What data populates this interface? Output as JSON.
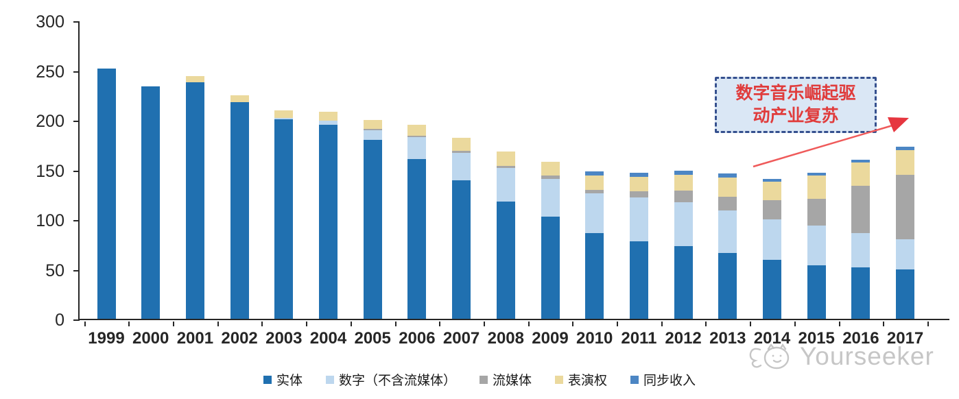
{
  "chart_data": {
    "type": "bar",
    "stacked": true,
    "title": "",
    "xlabel": "",
    "ylabel": "",
    "ylim": [
      0,
      300
    ],
    "yticks": [
      0,
      50,
      100,
      150,
      200,
      250,
      300
    ],
    "grid": false,
    "legend_position": "bottom",
    "categories": [
      "1999",
      "2000",
      "2001",
      "2002",
      "2003",
      "2004",
      "2005",
      "2006",
      "2007",
      "2008",
      "2009",
      "2010",
      "2011",
      "2012",
      "2013",
      "2014",
      "2015",
      "2016",
      "2017"
    ],
    "series": [
      {
        "key": "physical",
        "name": "实体",
        "color": "#2070b0",
        "values": [
          252,
          234,
          238,
          218,
          201,
          195,
          180,
          161,
          139,
          118,
          103,
          86,
          78,
          73,
          66,
          59,
          54,
          52,
          50
        ]
      },
      {
        "key": "digital",
        "name": "数字（不含流媒体）",
        "color": "#bdd7ee",
        "values": [
          0,
          0,
          0,
          0,
          1,
          4,
          10,
          22,
          28,
          34,
          38,
          40,
          44,
          44,
          43,
          41,
          40,
          34,
          30
        ]
      },
      {
        "key": "streaming",
        "name": "流媒体",
        "color": "#a6a6a6",
        "values": [
          0,
          0,
          0,
          0,
          0,
          0,
          1,
          1,
          2,
          2,
          3,
          4,
          6,
          12,
          14,
          19,
          27,
          48,
          65
        ]
      },
      {
        "key": "performance",
        "name": "表演权",
        "color": "#ebd99d",
        "values": [
          0,
          0,
          6,
          7,
          8,
          9,
          9,
          11,
          13,
          14,
          14,
          14,
          15,
          16,
          19,
          19,
          23,
          23,
          25
        ]
      },
      {
        "key": "sync",
        "name": "同步收入",
        "color": "#4c86c4",
        "values": [
          0,
          0,
          0,
          0,
          0,
          0,
          0,
          0,
          0,
          0,
          0,
          4,
          4,
          4,
          4,
          3,
          3,
          3,
          3
        ]
      }
    ]
  },
  "annotation": {
    "line1": "数字音乐崛起驱",
    "line2": "动产业复苏",
    "box_bg": "#dae7f5",
    "box_border": "#35508e",
    "text_color": "#e03c3c",
    "arrow_color": "#ef5a5a"
  },
  "watermark": {
    "text": "Yourseeker",
    "color": "#c6c6c6"
  },
  "axis": {
    "line_color": "#262626",
    "label_color": "#262626"
  }
}
